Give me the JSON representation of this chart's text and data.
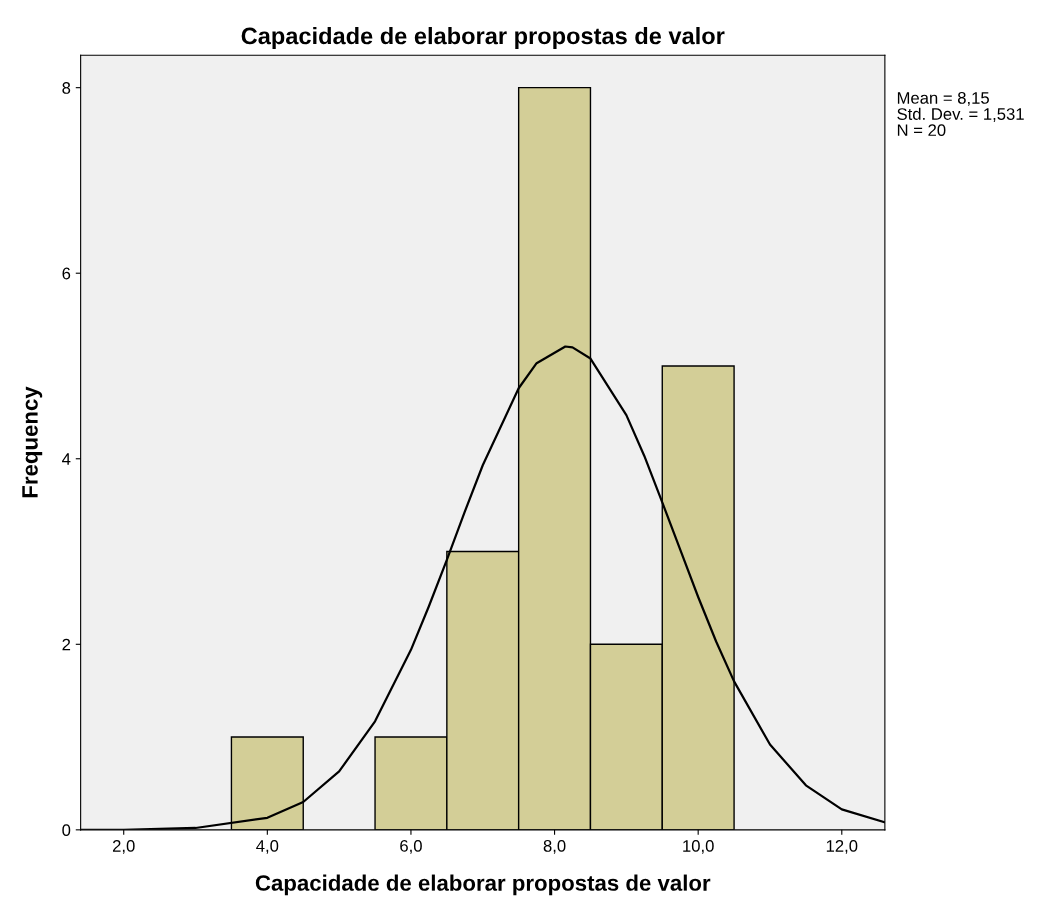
{
  "chart_data": {
    "type": "histogram",
    "title": "Capacidade de elaborar propostas de valor",
    "xlabel": "Capacidade de elaborar propostas de valor",
    "ylabel": "Frequency",
    "bins": [
      3.5,
      4.5,
      5.5,
      6.5,
      7.5,
      8.5,
      9.5,
      10.5
    ],
    "values": [
      1,
      0,
      1,
      3,
      8,
      2,
      5
    ],
    "color": "#d3ce97",
    "series": [
      {
        "type": "line",
        "color": "#000000",
        "x": [
          1.4,
          2,
          3,
          4,
          4.5,
          5,
          5.5,
          6,
          6.25,
          6.5,
          6.75,
          7,
          7.5,
          7.75,
          8.15,
          8.25,
          8.5,
          9,
          9.25,
          9.5,
          9.75,
          10,
          10.25,
          10.5,
          11,
          11.5,
          12,
          12.6
        ],
        "values": [
          0.0,
          0.0,
          0.02,
          0.13,
          0.3,
          0.63,
          1.17,
          1.94,
          2.41,
          2.91,
          3.43,
          3.93,
          4.76,
          5.03,
          5.21,
          5.2,
          5.08,
          4.47,
          4.03,
          3.53,
          3.02,
          2.51,
          2.03,
          1.6,
          0.92,
          0.48,
          0.22,
          0.08
        ]
      }
    ],
    "xlim": [
      1.4,
      12.6
    ],
    "ylim": [
      0,
      8.35
    ],
    "xticks": [
      {
        "value": 2,
        "label": "2,0"
      },
      {
        "value": 4,
        "label": "4,0"
      },
      {
        "value": 6,
        "label": "6,0"
      },
      {
        "value": 8,
        "label": "8,0"
      },
      {
        "value": 10,
        "label": "10,0"
      },
      {
        "value": 12,
        "label": "12,0"
      }
    ],
    "yticks": [
      0,
      2,
      4,
      6,
      8
    ],
    "grid": false,
    "legend": false,
    "annotations": [
      "Mean = 8,15",
      "Std. Dev. = 1,531",
      "N = 20"
    ]
  }
}
